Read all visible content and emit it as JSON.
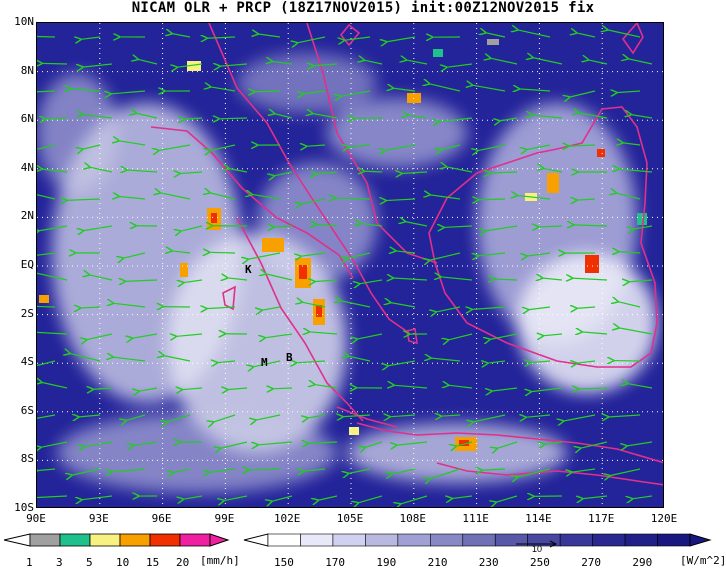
{
  "title": "NICAM OLR + PRCP (18Z17NOV2015) init:00Z12NOV2015 fix",
  "lat_labels": [
    "10N",
    "8N",
    "6N",
    "4N",
    "2N",
    "EQ",
    "2S",
    "4S",
    "6S",
    "8S",
    "10S"
  ],
  "lon_labels": [
    "90E",
    "93E",
    "96E",
    "99E",
    "102E",
    "105E",
    "108E",
    "111E",
    "114E",
    "117E",
    "120E"
  ],
  "stations": [
    "K",
    "M",
    "B"
  ],
  "colors": {
    "ocean": "#23239a",
    "cloud": "#e8e8f4",
    "coast": "#e0308c",
    "wind": "#22cc22",
    "grid": "#ffffff"
  },
  "prcp_colorbar": {
    "labels": [
      "1",
      "3",
      "5",
      "10",
      "15",
      "20"
    ],
    "unit": "[mm/h]",
    "colors": [
      "#a0a0a0",
      "#20c08c",
      "#f8f080",
      "#f8a000",
      "#f03000",
      "#f020a0"
    ]
  },
  "olr_colorbar": {
    "labels": [
      "150",
      "170",
      "190",
      "210",
      "230",
      "250",
      "270",
      "290"
    ],
    "unit": "[W/m^2]",
    "vector_ref": "10",
    "colors": [
      "#ffffff",
      "#e8e8f8",
      "#d0d0f0",
      "#b8b8e0",
      "#a0a0d4",
      "#8888c4",
      "#7070b4",
      "#5858a8",
      "#4848a0",
      "#383898",
      "#282890",
      "#202088",
      "#181880"
    ]
  }
}
